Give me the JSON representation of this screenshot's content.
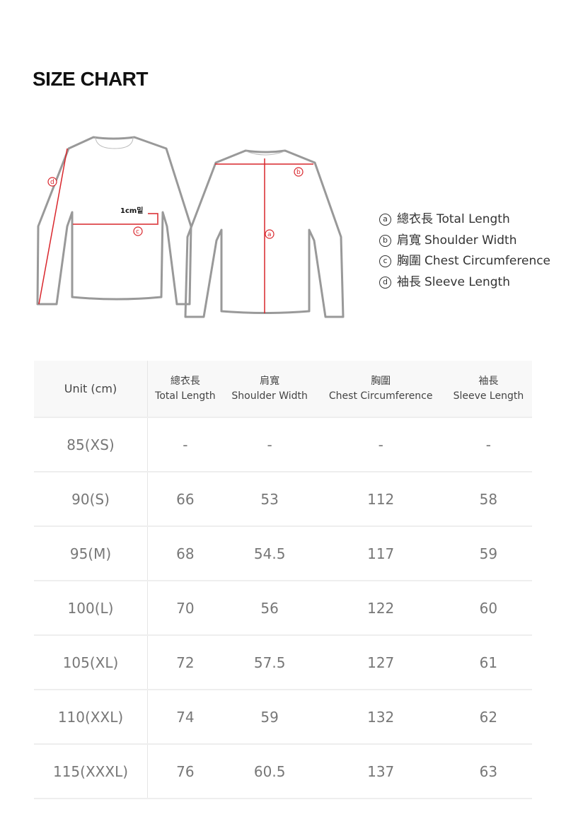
{
  "title": "SIZE CHART",
  "diagram": {
    "note": "1cm밑",
    "markers": [
      "a",
      "b",
      "c",
      "d"
    ],
    "accent_color": "#d9262c"
  },
  "legend": [
    {
      "marker": "a",
      "zh": "總衣長",
      "en": "Total Length"
    },
    {
      "marker": "b",
      "zh": "肩寬",
      "en": "Shoulder Width"
    },
    {
      "marker": "c",
      "zh": "胸圍",
      "en": "Chest Circumference"
    },
    {
      "marker": "d",
      "zh": "袖長",
      "en": "Sleeve Length"
    }
  ],
  "table": {
    "unit_header": "Unit (cm)",
    "columns": [
      {
        "zh": "總衣長",
        "en": "Total Length"
      },
      {
        "zh": "肩寬",
        "en": "Shoulder Width"
      },
      {
        "zh": "胸圍",
        "en": "Chest Circumference"
      },
      {
        "zh": "袖長",
        "en": "Sleeve Length"
      }
    ],
    "rows": [
      {
        "size": "85(XS)",
        "values": [
          "-",
          "-",
          "-",
          "-"
        ]
      },
      {
        "size": "90(S)",
        "values": [
          "66",
          "53",
          "112",
          "58"
        ]
      },
      {
        "size": "95(M)",
        "values": [
          "68",
          "54.5",
          "117",
          "59"
        ]
      },
      {
        "size": "100(L)",
        "values": [
          "70",
          "56",
          "122",
          "60"
        ]
      },
      {
        "size": "105(XL)",
        "values": [
          "72",
          "57.5",
          "127",
          "61"
        ]
      },
      {
        "size": "110(XXL)",
        "values": [
          "74",
          "59",
          "132",
          "62"
        ]
      },
      {
        "size": "115(XXXL)",
        "values": [
          "76",
          "60.5",
          "137",
          "63"
        ]
      }
    ]
  }
}
